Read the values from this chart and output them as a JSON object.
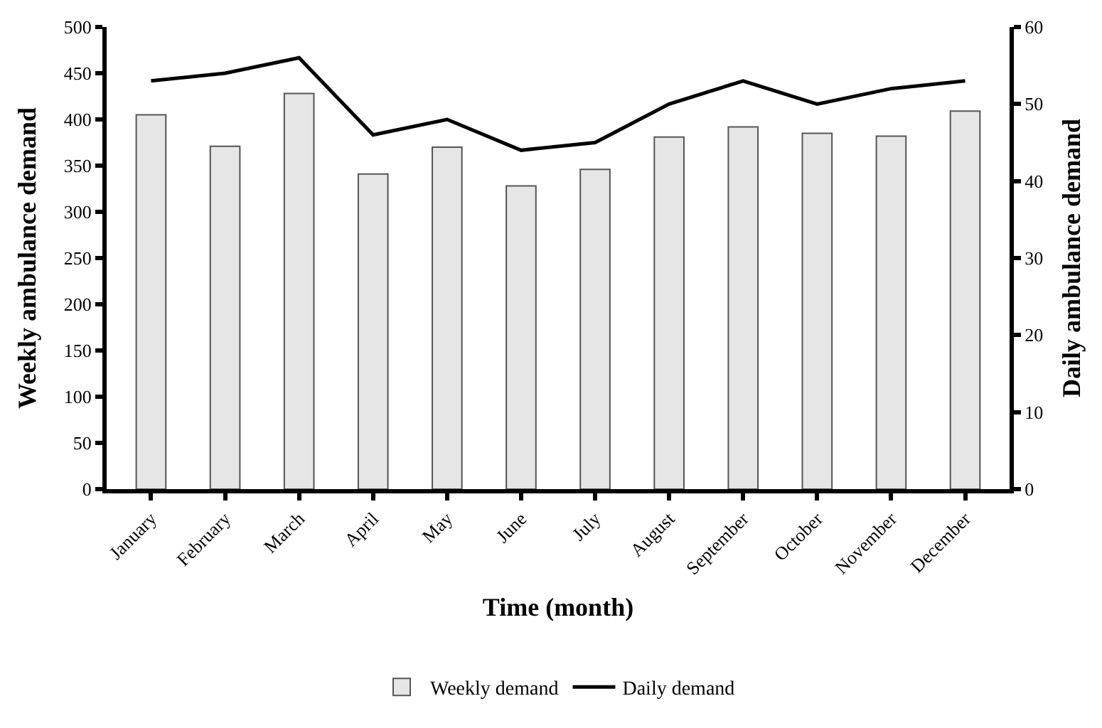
{
  "chart_data": {
    "type": "bar",
    "xlabel": "Time (month)",
    "ylabel": "Weekly ambulance demand",
    "y2label": "Daily ambulance demand",
    "categories": [
      "January",
      "February",
      "March",
      "April",
      "May",
      "June",
      "July",
      "August",
      "September",
      "October",
      "November",
      "December"
    ],
    "series": [
      {
        "name": "Weekly demand",
        "color": "#e6e6e6",
        "values": [
          405,
          371,
          428,
          341,
          370,
          328,
          346,
          381,
          392,
          385,
          382,
          409
        ]
      },
      {
        "name": "Daily demand",
        "type": "line",
        "axis": "y2",
        "color": "#000000",
        "values": [
          53,
          54,
          56,
          46,
          48,
          44,
          45,
          50,
          53,
          50,
          52,
          53
        ]
      }
    ],
    "ylim": [
      0,
      500
    ],
    "yticks": [
      0,
      50,
      100,
      150,
      200,
      250,
      300,
      350,
      400,
      450,
      500
    ],
    "y2lim": [
      0,
      60
    ],
    "y2ticks": [
      0,
      10,
      20,
      30,
      40,
      50,
      60
    ],
    "legend": "bottom",
    "marker": "none",
    "line_style": "solid"
  }
}
